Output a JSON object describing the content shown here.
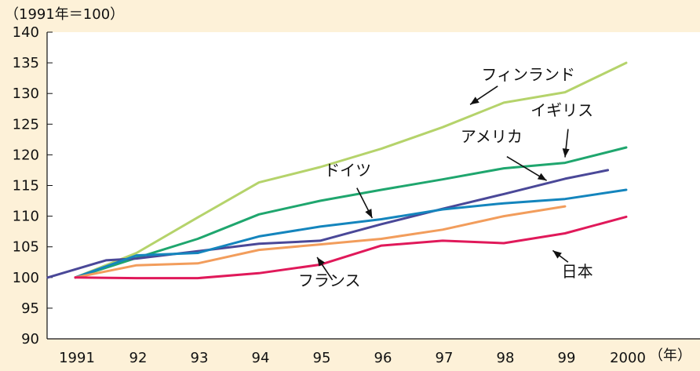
{
  "chart_data": {
    "type": "line",
    "y_unit_label": "（1991年＝100）",
    "x_unit_label": "（年）",
    "ylim": [
      90,
      140
    ],
    "y_ticks": [
      90,
      95,
      100,
      105,
      110,
      115,
      120,
      125,
      130,
      135,
      140
    ],
    "x_tick_labels": [
      "1991",
      "92",
      "93",
      "94",
      "95",
      "96",
      "97",
      "98",
      "99",
      "2000"
    ],
    "grid": false,
    "series": [
      {
        "name": "フィンランド",
        "color": "#b5d36b",
        "x": [
          1991,
          1992,
          1993,
          1994,
          1995,
          1996,
          1997,
          1998,
          1999,
          2000
        ],
        "values": [
          100,
          104,
          109.8,
          115.5,
          118,
          121,
          124.5,
          128.5,
          130.2,
          135
        ]
      },
      {
        "name": "イギリス",
        "color": "#1fa66e",
        "x": [
          1991,
          1992,
          1993,
          1994,
          1995,
          1996,
          1997,
          1998,
          1999,
          2000
        ],
        "values": [
          100,
          103.2,
          106.3,
          110.3,
          112.5,
          114.3,
          116,
          117.8,
          118.7,
          121.2
        ]
      },
      {
        "name": "アメリカ",
        "color": "#4a4898",
        "x": [
          1990.55,
          1991.5,
          1992,
          1993,
          1994,
          1995,
          1996,
          1997,
          1998,
          1999,
          1999.7
        ],
        "values": [
          100,
          102.8,
          103.1,
          104.3,
          105.5,
          106,
          108.7,
          111.2,
          113.6,
          116.1,
          117.5
        ]
      },
      {
        "name": "ドイツ",
        "color": "#1485bd",
        "x": [
          1991,
          1992,
          1993,
          1994,
          1995,
          1996,
          1997,
          1998,
          1999,
          2000
        ],
        "values": [
          100,
          103.6,
          104,
          106.7,
          108.3,
          109.5,
          111.1,
          112.1,
          112.8,
          114.3
        ]
      },
      {
        "name": "フランス",
        "color": "#f29d5c",
        "x": [
          1991,
          1992,
          1993,
          1994,
          1995,
          1996,
          1997,
          1998,
          1999
        ],
        "values": [
          100,
          102,
          102.3,
          104.5,
          105.4,
          106.3,
          107.8,
          110,
          111.6
        ]
      },
      {
        "name": "日本",
        "color": "#e0195a",
        "x": [
          1991,
          1992,
          1993,
          1994,
          1995,
          1996,
          1997,
          1998,
          1999,
          2000
        ],
        "values": [
          100,
          99.9,
          99.9,
          100.7,
          102.1,
          105.2,
          106,
          105.6,
          107.2,
          109.9
        ]
      }
    ],
    "annotations": [
      {
        "text": "フィンランド",
        "label_at": [
          1998.4,
          132.2
        ],
        "arrow_from": [
          1997.9,
          131.2
        ],
        "arrow_to": [
          1997.45,
          128.2
        ]
      },
      {
        "text": "イギリス",
        "label_at": [
          1998.95,
          126.4
        ],
        "arrow_from": [
          1999.05,
          124.2
        ],
        "arrow_to": [
          1999.0,
          119.6
        ]
      },
      {
        "text": "アメリカ",
        "label_at": [
          1997.8,
          122.1
        ],
        "arrow_from": [
          1998.05,
          119.7
        ],
        "arrow_to": [
          1998.7,
          115.8
        ]
      },
      {
        "text": "ドイツ",
        "label_at": [
          1995.45,
          116.6
        ],
        "arrow_from": [
          1995.6,
          114.6
        ],
        "arrow_to": [
          1995.85,
          109.7
        ]
      },
      {
        "text": "フランス",
        "label_at": [
          1995.15,
          98.6
        ],
        "arrow_from": [
          1995.2,
          99.6
        ],
        "arrow_to": [
          1994.95,
          103.3
        ]
      },
      {
        "text": "日本",
        "label_at": [
          1999.2,
          100.1
        ],
        "arrow_from": [
          1999.05,
          102.5
        ],
        "arrow_to": [
          1998.8,
          104.4
        ]
      }
    ]
  }
}
